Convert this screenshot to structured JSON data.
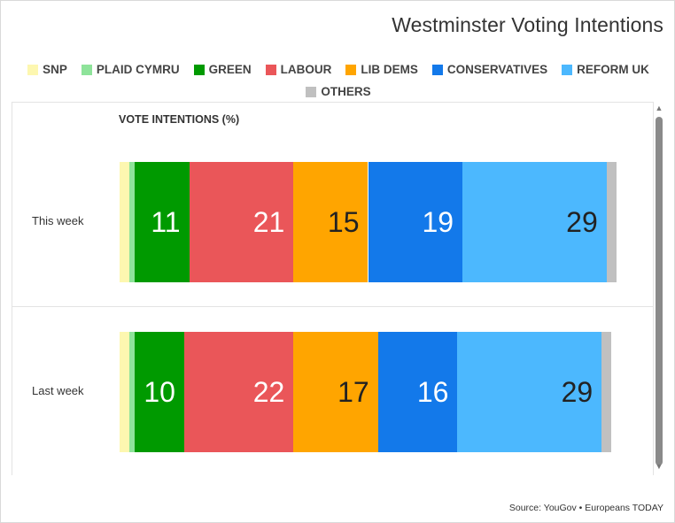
{
  "title": "Westminster Voting Intentions",
  "source": "Source: YouGov • Europeans TODAY",
  "legend": [
    {
      "label": "SNP",
      "color": "#fdf7b0"
    },
    {
      "label": "PLAID CYMRU",
      "color": "#8ee39a"
    },
    {
      "label": "GREEN",
      "color": "#009a00"
    },
    {
      "label": "LABOUR",
      "color": "#ea5659"
    },
    {
      "label": "LIB DEMS",
      "color": "#ffa500"
    },
    {
      "label": "CONSERVATIVES",
      "color": "#1379ea"
    },
    {
      "label": "REFORM UK",
      "color": "#4cb8fe"
    },
    {
      "label": "OTHERS",
      "color": "#c0c0c0"
    }
  ],
  "chart_data": {
    "type": "bar",
    "orientation": "horizontal",
    "stacked": true,
    "xlabel": "VOTE INTENTIONS (%)",
    "categories": [
      "This week",
      "Last week"
    ],
    "series": [
      {
        "name": "SNP",
        "color": "#fdf7b0",
        "values": [
          2,
          2
        ]
      },
      {
        "name": "PLAID CYMRU",
        "color": "#8ee39a",
        "values": [
          1,
          1
        ]
      },
      {
        "name": "GREEN",
        "color": "#009a00",
        "values": [
          11,
          10
        ]
      },
      {
        "name": "LABOUR",
        "color": "#ea5659",
        "values": [
          21,
          22
        ]
      },
      {
        "name": "LIB DEMS",
        "color": "#ffa500",
        "values": [
          15,
          17
        ]
      },
      {
        "name": "CONSERVATIVES",
        "color": "#1379ea",
        "values": [
          19,
          16
        ]
      },
      {
        "name": "REFORM UK",
        "color": "#4cb8fe",
        "values": [
          29,
          29
        ]
      },
      {
        "name": "OTHERS",
        "color": "#c0c0c0",
        "values": [
          2,
          2
        ]
      }
    ],
    "data_labels": [
      [
        null,
        null,
        "11",
        "21",
        "15",
        "19",
        "29",
        null
      ],
      [
        null,
        null,
        "10",
        "22",
        "17",
        "16",
        "29",
        null
      ]
    ],
    "label_colors": {
      "GREEN": "#ffffff",
      "LABOUR": "#ffffff",
      "LIB DEMS": "#222222",
      "CONSERVATIVES": "#ffffff",
      "REFORM UK": "#222222"
    },
    "xlim": [
      0,
      100
    ],
    "grid": false,
    "legend_position": "top"
  }
}
